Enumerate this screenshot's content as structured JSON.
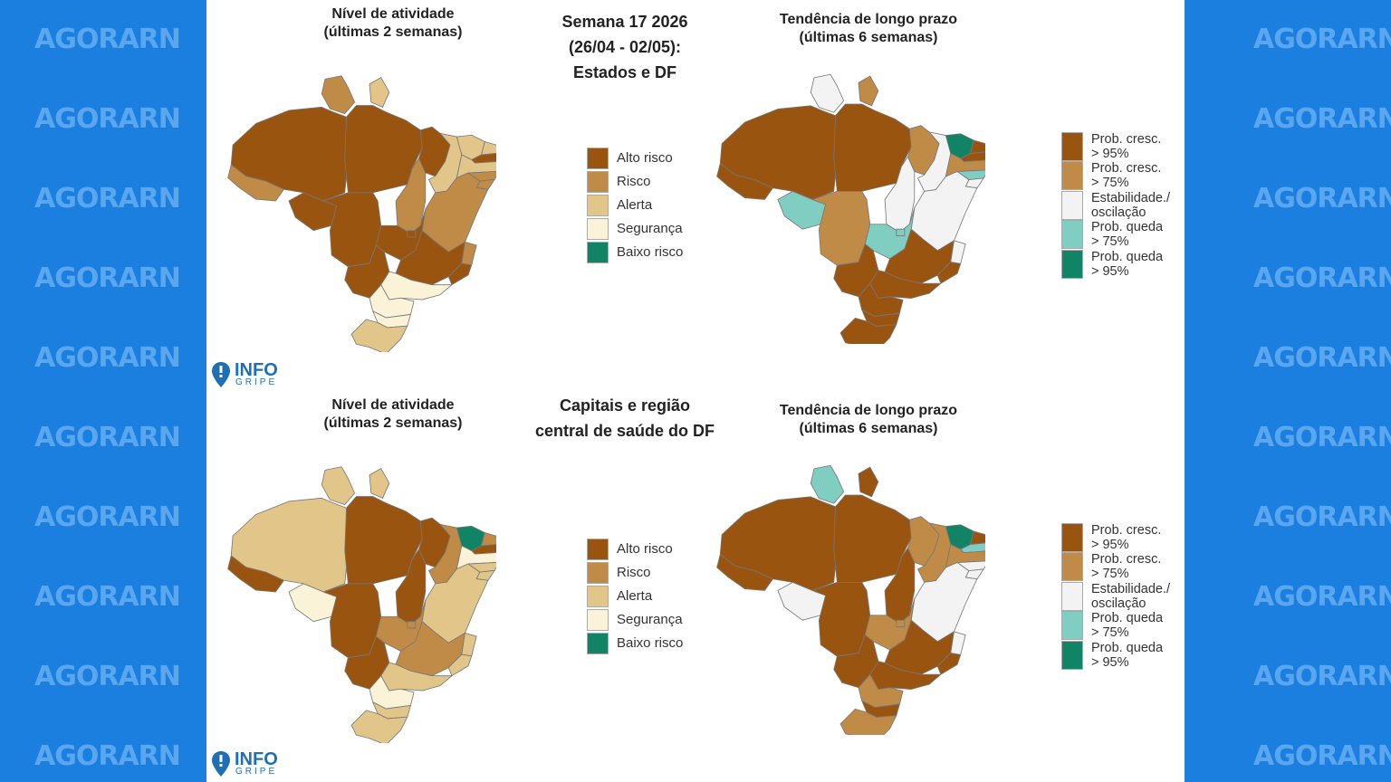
{
  "watermark": {
    "text": "AGORARN"
  },
  "panel_top": {
    "title_left": [
      "Nível de atividade",
      "(últimas 2 semanas)"
    ],
    "title_center": [
      "Semana 17 2026",
      "(26/04 - 02/05):",
      "Estados e DF"
    ],
    "title_right": [
      "Tendência de longo prazo",
      "(últimas 6 semanas)"
    ]
  },
  "panel_bottom": {
    "title_left": [
      "Nível de atividade",
      "(últimas 2 semanas)"
    ],
    "title_center": [
      "Capitais e região",
      "central de saúde do DF"
    ],
    "title_right": [
      "Tendência de longo prazo",
      "(últimas 6 semanas)"
    ]
  },
  "activity_legend": [
    {
      "label": "Alto risco",
      "color": "#995510"
    },
    {
      "label": "Risco",
      "color": "#c08b47"
    },
    {
      "label": "Alerta",
      "color": "#e2c589"
    },
    {
      "label": "Segurança",
      "color": "#fbf3d7"
    },
    {
      "label": "Baixo risco",
      "color": "#118466"
    }
  ],
  "trend_legend": [
    {
      "label": [
        "Prob. cresc.",
        "> 95%"
      ],
      "color": "#995510"
    },
    {
      "label": [
        "Prob. cresc.",
        "> 75%"
      ],
      "color": "#c08b47"
    },
    {
      "label": [
        "Estabilidade./",
        "oscilação"
      ],
      "color": "#f3f3f3"
    },
    {
      "label": [
        "Prob. queda",
        "> 75%"
      ],
      "color": "#80cdc1"
    },
    {
      "label": [
        "Prob. queda",
        "> 95%"
      ],
      "color": "#118466"
    }
  ],
  "logo": {
    "info": "INFO",
    "gripe": "GRIPE"
  },
  "maps": {
    "top_activity": {
      "AM": "alto",
      "RR": "risco",
      "AP": "alerta",
      "PA": "alto",
      "AC": "risco",
      "RO": "alto",
      "MT": "alto",
      "TO": "risco",
      "MA": "alto",
      "PI": "alerta",
      "CE": "alerta",
      "RN": "alerta",
      "PB": "alto",
      "PE": "alerta",
      "AL": "risco",
      "SE": "risco",
      "BA": "risco",
      "GO": "alto",
      "DF": "alto",
      "MS": "alto",
      "MG": "alto",
      "ES": "risco",
      "RJ": "alto",
      "SP": "seguranca",
      "PR": "seguranca",
      "SC": "seguranca",
      "RS": "alerta"
    },
    "top_trend": {
      "AM": "c95",
      "RR": "est",
      "AP": "c75",
      "PA": "c95",
      "AC": "c95",
      "RO": "q75",
      "MT": "c75",
      "TO": "est",
      "MA": "c75",
      "PI": "est",
      "CE": "q95",
      "RN": "c95",
      "PB": "c95",
      "PE": "c75",
      "AL": "q75",
      "SE": "est",
      "BA": "est",
      "GO": "q75",
      "DF": "q75",
      "MS": "c95",
      "MG": "c95",
      "ES": "est",
      "RJ": "c95",
      "SP": "c95",
      "PR": "c95",
      "SC": "c95",
      "RS": "c95"
    },
    "bottom_activity": {
      "AM": "alerta",
      "RR": "alerta",
      "AP": "alerta",
      "PA": "alto",
      "AC": "alto",
      "RO": "seguranca",
      "MT": "alto",
      "TO": "alto",
      "MA": "alto",
      "PI": "risco",
      "CE": "baixo",
      "RN": "risco",
      "PB": "alto",
      "PE": "seguranca",
      "AL": "alerta",
      "SE": "alerta",
      "BA": "alerta",
      "GO": "risco",
      "DF": "risco",
      "MS": "alto",
      "MG": "risco",
      "ES": "alerta",
      "RJ": "alerta",
      "SP": "alerta",
      "PR": "seguranca",
      "SC": "alerta",
      "RS": "alerta"
    },
    "bottom_trend": {
      "AM": "c95",
      "RR": "q75",
      "AP": "c95",
      "PA": "c95",
      "AC": "c95",
      "RO": "est",
      "MT": "c95",
      "TO": "c95",
      "MA": "c75",
      "PI": "c75",
      "CE": "q95",
      "RN": "c95",
      "PB": "q75",
      "PE": "c75",
      "AL": "est",
      "SE": "est",
      "BA": "est",
      "GO": "c75",
      "DF": "c75",
      "MS": "c95",
      "MG": "c95",
      "ES": "est",
      "RJ": "c95",
      "SP": "c95",
      "PR": "c75",
      "SC": "c95",
      "RS": "c75"
    }
  }
}
